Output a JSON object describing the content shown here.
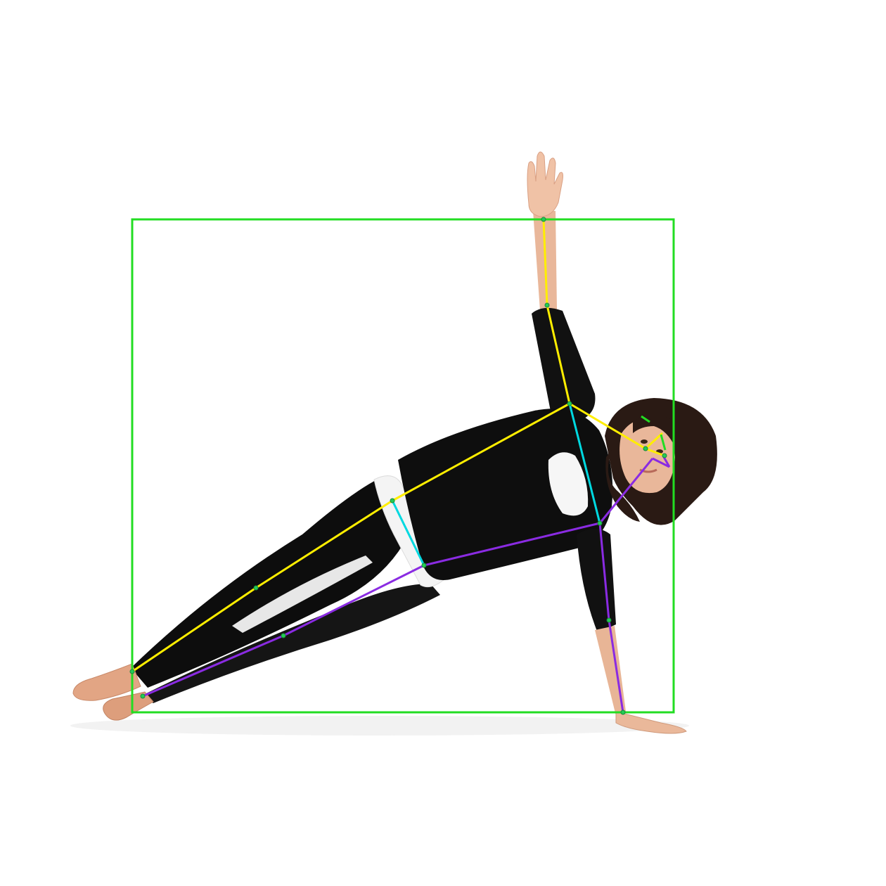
{
  "image": {
    "subject": "woman-in-side-plank-yoga-pose",
    "background": "white"
  },
  "annotation": {
    "bbox_color": "#22dd22",
    "colors": {
      "left_side": "#ffee00",
      "right_side": "#8a2be2",
      "torso_center": "#00d8e0",
      "face": "#22dd22",
      "keypoint": "#22cc55"
    }
  }
}
